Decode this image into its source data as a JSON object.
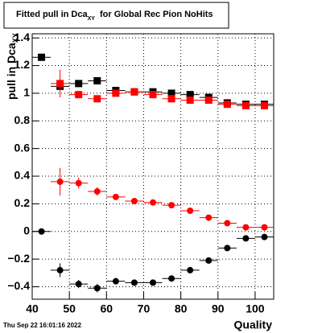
{
  "chart_data": {
    "type": "scatter",
    "title": "Fitted pull in Dca",
    "title_subscript": "XY",
    "title_suffix": "for Global Rec Pion NoHits",
    "xlabel": "Quality",
    "ylabel": "pull in Dca",
    "ylabel_subscript": "XY",
    "footer": "Thu Sep 22 16:01:16 2022",
    "xlim": [
      40,
      105
    ],
    "ylim": [
      -0.49,
      1.43
    ],
    "xticks": [
      40,
      50,
      60,
      70,
      80,
      90,
      100
    ],
    "yticks": [
      {
        "value": -0.4,
        "label": "−0.4"
      },
      {
        "value": -0.2,
        "label": "−0.2"
      },
      0,
      0.2,
      0.4,
      0.6,
      0.8,
      1,
      1.2,
      1.4
    ],
    "grid": true,
    "x_error": 2.5,
    "x": [
      42.5,
      47.5,
      52.5,
      57.5,
      62.5,
      67.5,
      72.5,
      77.5,
      82.5,
      87.5,
      92.5,
      97.5,
      102.5
    ],
    "series": [
      {
        "color": "#000000",
        "marker": "square",
        "values": [
          1.26,
          1.05,
          1.07,
          1.09,
          1.02,
          1.01,
          1.01,
          1.0,
          0.99,
          0.97,
          0.93,
          0.92,
          0.92
        ],
        "errors": [
          0.02,
          0.02,
          0.02,
          0.02,
          0.02,
          0.02,
          0.02,
          0.02,
          0.02,
          0.02,
          0.02,
          0.02,
          0.02
        ]
      },
      {
        "color": "#ff0000",
        "marker": "square",
        "values": [
          null,
          1.07,
          0.99,
          0.96,
          1.0,
          1.01,
          0.99,
          0.96,
          0.95,
          0.95,
          0.92,
          0.91,
          0.91
        ],
        "errors": [
          null,
          0.1,
          0.02,
          0.02,
          0.02,
          0.02,
          0.02,
          0.02,
          0.02,
          0.02,
          0.02,
          0.02,
          0.02
        ]
      },
      {
        "color": "#ff0000",
        "marker": "circle",
        "values": [
          null,
          0.36,
          0.35,
          0.29,
          0.25,
          0.22,
          0.21,
          0.19,
          0.15,
          0.1,
          0.06,
          0.03,
          0.03
        ],
        "errors": [
          null,
          0.1,
          0.04,
          0.03,
          0.01,
          0.01,
          0.01,
          0.01,
          0.01,
          0.01,
          0.01,
          0.01,
          0.01
        ]
      },
      {
        "color": "#000000",
        "marker": "circle",
        "values": [
          0.0,
          -0.28,
          -0.38,
          -0.41,
          -0.36,
          -0.37,
          -0.37,
          -0.34,
          -0.28,
          -0.21,
          -0.12,
          -0.05,
          -0.04
        ],
        "errors": [
          0.01,
          0.05,
          0.03,
          0.03,
          0.02,
          0.02,
          0.02,
          0.02,
          0.02,
          0.02,
          0.02,
          0.02,
          0.02
        ]
      }
    ]
  }
}
